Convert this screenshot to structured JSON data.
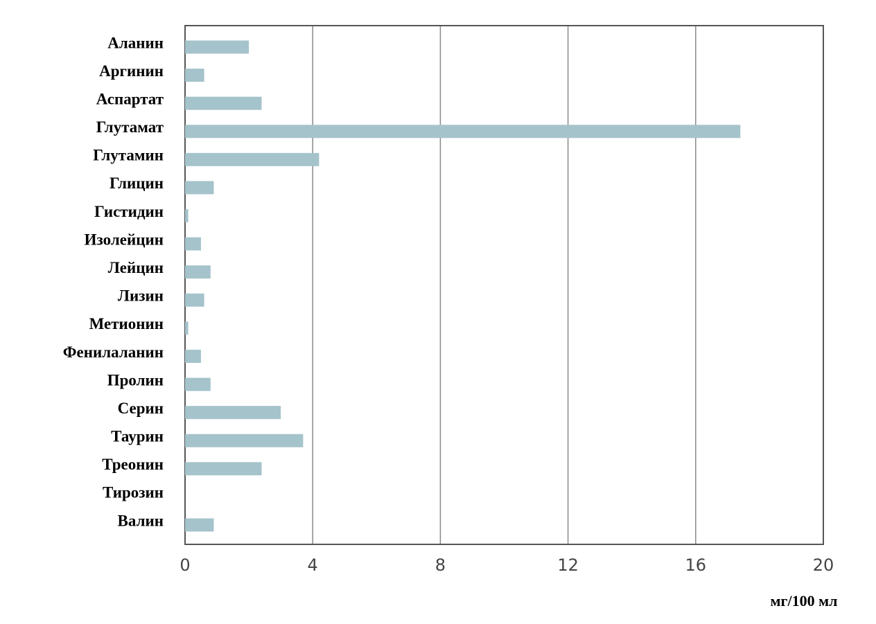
{
  "chart_data": {
    "type": "hbar",
    "categories": [
      "Аланин",
      "Аргинин",
      "Аспартат",
      "Глутамат",
      "Глутамин",
      "Глицин",
      "Гистидин",
      "Изолейцин",
      "Лейцин",
      "Лизин",
      "Метионин",
      "Фенилаланин",
      "Пролин",
      "Серин",
      "Таурин",
      "Треонин",
      "Тирозин",
      "Валин"
    ],
    "values": [
      2.0,
      0.6,
      2.4,
      17.4,
      4.2,
      0.9,
      0.1,
      0.5,
      0.8,
      0.6,
      0.1,
      0.5,
      0.8,
      3.0,
      3.7,
      2.4,
      0,
      0.9
    ],
    "color": "#a5c3cb",
    "xlim": [
      0,
      20
    ],
    "xticks": [
      0,
      4,
      8,
      12,
      16,
      20
    ],
    "grid": true,
    "x_label": "мг/100 мл"
  }
}
